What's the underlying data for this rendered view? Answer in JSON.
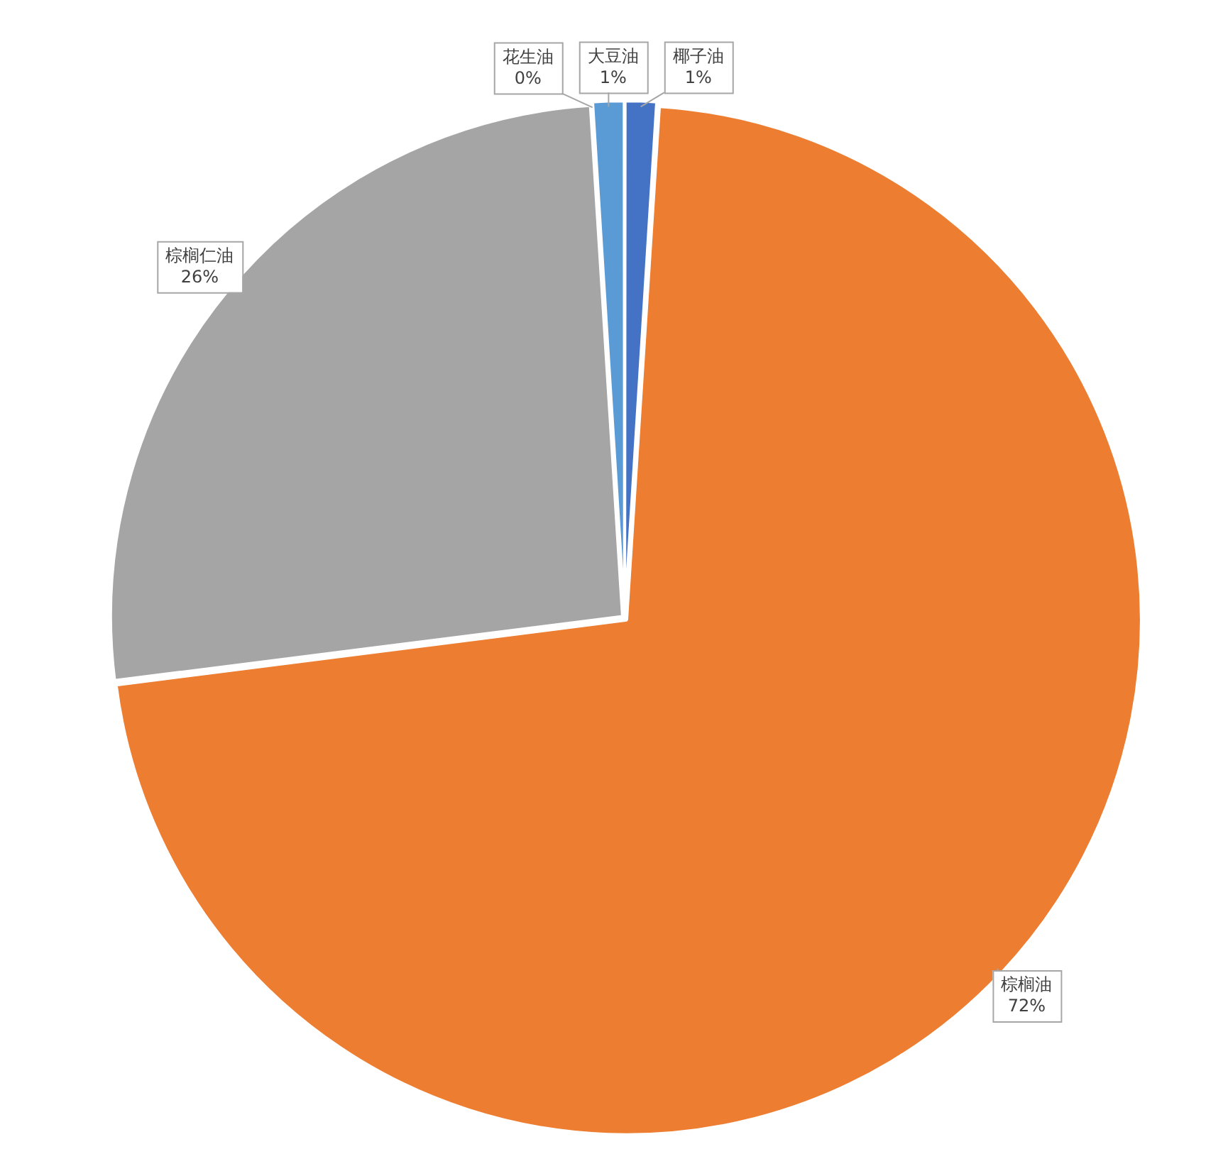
{
  "chart_data": {
    "type": "pie",
    "categories": [
      "椰子油",
      "棕榈油",
      "棕榈仁油",
      "花生油",
      "大豆油"
    ],
    "values": [
      1,
      72,
      26,
      0,
      1
    ],
    "colors": [
      "#4472c4",
      "#ed7d31",
      "#a5a5a5",
      "#ffc000",
      "#5b9bd5"
    ],
    "value_labels": [
      "1%",
      "72%",
      "26%",
      "0%",
      "1%"
    ],
    "legend": false
  }
}
